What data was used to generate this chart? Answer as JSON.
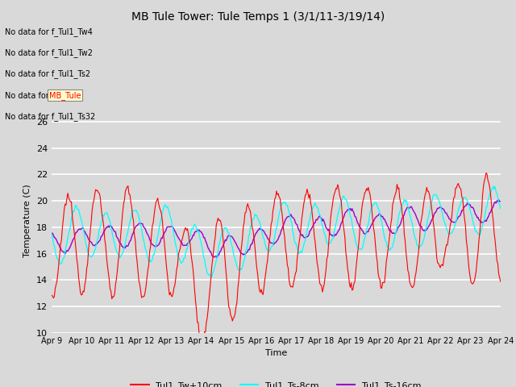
{
  "title": "MB Tule Tower: Tule Temps 1 (3/1/11-3/19/14)",
  "xlabel": "Time",
  "ylabel": "Temperature (C)",
  "ylim": [
    10,
    27
  ],
  "yticks": [
    10,
    12,
    14,
    16,
    18,
    20,
    22,
    24,
    26
  ],
  "xtick_labels": [
    "Apr 9",
    "Apr 10",
    "Apr 11",
    "Apr 12",
    "Apr 13",
    "Apr 14",
    "Apr 15",
    "Apr 16",
    "Apr 17",
    "Apr 18",
    "Apr 19",
    "Apr 20",
    "Apr 21",
    "Apr 22",
    "Apr 23",
    "Apr 24"
  ],
  "legend_labels": [
    "Tul1_Tw+10cm",
    "Tul1_Ts-8cm",
    "Tul1_Ts-16cm"
  ],
  "line_colors": [
    "red",
    "cyan",
    "#9900cc"
  ],
  "no_data_texts": [
    "No data for f_Tul1_Tw4",
    "No data for f_Tul1_Tw2",
    "No data for f_Tul1_Ts2",
    "No data for f_Tul1_Ts32"
  ],
  "no_data_highlighted": "No data for f_MB_Tule",
  "highlight_prefix": "No data for f_",
  "highlight_word": "MB_Tule",
  "background_color": "#d9d9d9",
  "plot_bg_color": "#d9d9d9",
  "grid_color": "white",
  "title_fontsize": 10,
  "axis_fontsize": 8,
  "legend_fontsize": 8
}
